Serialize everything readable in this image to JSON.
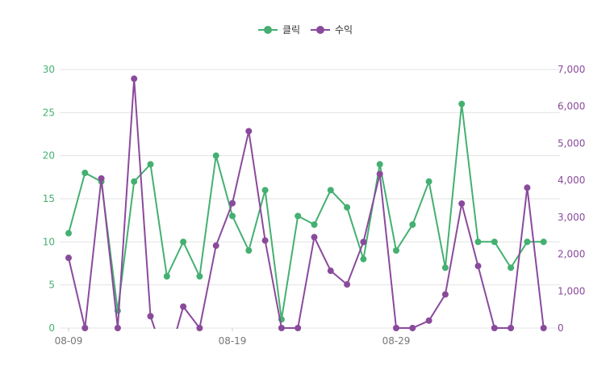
{
  "legend": {
    "clicks_label": "클릭",
    "revenue_label": "수익"
  },
  "colors": {
    "clicks": "#44b071",
    "revenue": "#8a4a9c",
    "grid": "#e3e3e3",
    "axis_text": "#777777"
  },
  "chart_data": {
    "type": "line",
    "title": "",
    "legend_position": "top-center",
    "grid": true,
    "x": [
      "08-09",
      "08-10",
      "08-11",
      "08-12",
      "08-13",
      "08-14",
      "08-15",
      "08-16",
      "08-17",
      "08-18",
      "08-19",
      "08-20",
      "08-21",
      "08-22",
      "08-23",
      "08-24",
      "08-25",
      "08-26",
      "08-27",
      "08-28",
      "08-29",
      "08-30",
      "08-31",
      "09-01",
      "09-02",
      "09-03",
      "09-04",
      "09-05",
      "09-06",
      "09-07",
      "09-08"
    ],
    "x_tick_labels": [
      "08-09",
      "08-19",
      "08-29"
    ],
    "y_left": {
      "min": 0,
      "max": 30,
      "ticks": [
        0,
        5,
        10,
        15,
        20,
        25,
        30
      ]
    },
    "y_right": {
      "min": 0,
      "max": 7000,
      "ticks": [
        0,
        1000,
        2000,
        3000,
        4000,
        5000,
        6000,
        7000
      ],
      "tick_labels": [
        "0",
        "1,000",
        "2,000",
        "3,000",
        "4,000",
        "5,000",
        "6,000",
        "7,000"
      ]
    },
    "series": [
      {
        "name": "클릭",
        "axis": "left",
        "values": [
          11,
          18,
          17,
          2,
          17,
          19,
          6,
          10,
          6,
          20,
          13,
          9,
          16,
          1,
          13,
          12,
          16,
          14,
          8,
          19,
          9,
          12,
          17,
          7,
          26,
          10,
          10,
          7,
          10,
          10,
          null
        ]
      },
      {
        "name": "수익",
        "axis": "right",
        "values": [
          1900,
          0,
          4050,
          0,
          6750,
          320,
          -1000,
          580,
          0,
          2230,
          3380,
          5330,
          2370,
          0,
          0,
          2460,
          1550,
          1180,
          2330,
          4170,
          0,
          0,
          200,
          910,
          3370,
          1680,
          0,
          0,
          3800,
          0,
          null
        ]
      }
    ]
  }
}
